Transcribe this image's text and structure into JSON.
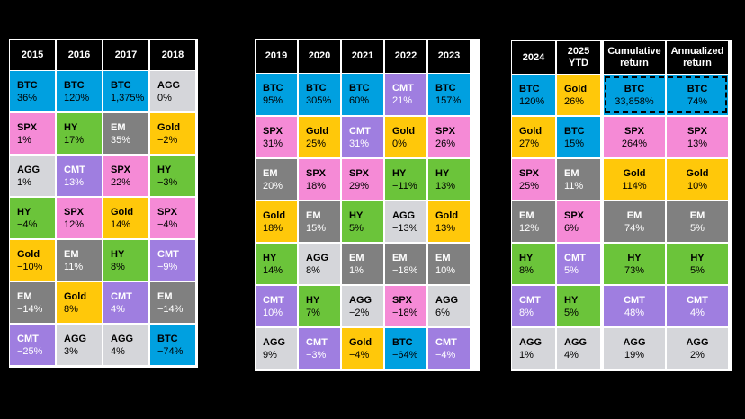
{
  "colors": {
    "BTC": "#00a0e0",
    "SPX": "#f58ad6",
    "AGG": "#d5d6da",
    "HY": "#6bc43a",
    "Gold": "#ffc80a",
    "EM": "#808080",
    "CMT": "#9f7ee0"
  },
  "text_colors": {
    "BTC": "#000000",
    "SPX": "#000000",
    "AGG": "#000000",
    "HY": "#000000",
    "Gold": "#000000",
    "EM": "#ffffff",
    "CMT": "#ffffff"
  },
  "chart_data": {
    "type": "table",
    "panels": [
      {
        "columns": [
          {
            "header": "2015",
            "cells": [
              {
                "asset": "BTC",
                "value": "36%"
              },
              {
                "asset": "SPX",
                "value": "1%"
              },
              {
                "asset": "AGG",
                "value": "1%"
              },
              {
                "asset": "HY",
                "value": "−4%"
              },
              {
                "asset": "Gold",
                "value": "−10%"
              },
              {
                "asset": "EM",
                "value": "−14%"
              },
              {
                "asset": "CMT",
                "value": "−25%"
              }
            ]
          },
          {
            "header": "2016",
            "cells": [
              {
                "asset": "BTC",
                "value": "120%"
              },
              {
                "asset": "HY",
                "value": "17%"
              },
              {
                "asset": "CMT",
                "value": "13%"
              },
              {
                "asset": "SPX",
                "value": "12%"
              },
              {
                "asset": "EM",
                "value": "11%"
              },
              {
                "asset": "Gold",
                "value": "8%"
              },
              {
                "asset": "AGG",
                "value": "3%"
              }
            ]
          },
          {
            "header": "2017",
            "cells": [
              {
                "asset": "BTC",
                "value": "1,375%"
              },
              {
                "asset": "EM",
                "value": "35%"
              },
              {
                "asset": "SPX",
                "value": "22%"
              },
              {
                "asset": "Gold",
                "value": "14%"
              },
              {
                "asset": "HY",
                "value": "8%"
              },
              {
                "asset": "CMT",
                "value": "4%"
              },
              {
                "asset": "AGG",
                "value": "4%"
              }
            ]
          },
          {
            "header": "2018",
            "cells": [
              {
                "asset": "AGG",
                "value": "0%"
              },
              {
                "asset": "Gold",
                "value": "−2%"
              },
              {
                "asset": "HY",
                "value": "−3%"
              },
              {
                "asset": "SPX",
                "value": "−4%"
              },
              {
                "asset": "CMT",
                "value": "−9%"
              },
              {
                "asset": "EM",
                "value": "−14%"
              },
              {
                "asset": "BTC",
                "value": "−74%"
              }
            ]
          }
        ]
      },
      {
        "columns": [
          {
            "header": "2019",
            "cells": [
              {
                "asset": "BTC",
                "value": "95%"
              },
              {
                "asset": "SPX",
                "value": "31%"
              },
              {
                "asset": "EM",
                "value": "20%"
              },
              {
                "asset": "Gold",
                "value": "18%"
              },
              {
                "asset": "HY",
                "value": "14%"
              },
              {
                "asset": "CMT",
                "value": "10%"
              },
              {
                "asset": "AGG",
                "value": "9%"
              }
            ]
          },
          {
            "header": "2020",
            "cells": [
              {
                "asset": "BTC",
                "value": "305%"
              },
              {
                "asset": "Gold",
                "value": "25%"
              },
              {
                "asset": "SPX",
                "value": "18%"
              },
              {
                "asset": "EM",
                "value": "15%"
              },
              {
                "asset": "AGG",
                "value": "8%"
              },
              {
                "asset": "HY",
                "value": "7%"
              },
              {
                "asset": "CMT",
                "value": "−3%"
              }
            ]
          },
          {
            "header": "2021",
            "cells": [
              {
                "asset": "BTC",
                "value": "60%"
              },
              {
                "asset": "CMT",
                "value": "31%"
              },
              {
                "asset": "SPX",
                "value": "29%"
              },
              {
                "asset": "HY",
                "value": "5%"
              },
              {
                "asset": "EM",
                "value": "1%"
              },
              {
                "asset": "AGG",
                "value": "−2%"
              },
              {
                "asset": "Gold",
                "value": "−4%"
              }
            ]
          },
          {
            "header": "2022",
            "cells": [
              {
                "asset": "CMT",
                "value": "21%"
              },
              {
                "asset": "Gold",
                "value": "0%"
              },
              {
                "asset": "HY",
                "value": "−11%"
              },
              {
                "asset": "AGG",
                "value": "−13%"
              },
              {
                "asset": "EM",
                "value": "−18%"
              },
              {
                "asset": "SPX",
                "value": "−18%"
              },
              {
                "asset": "BTC",
                "value": "−64%"
              }
            ]
          },
          {
            "header": "2023",
            "cells": [
              {
                "asset": "BTC",
                "value": "157%"
              },
              {
                "asset": "SPX",
                "value": "26%"
              },
              {
                "asset": "HY",
                "value": "13%"
              },
              {
                "asset": "Gold",
                "value": "13%"
              },
              {
                "asset": "EM",
                "value": "10%"
              },
              {
                "asset": "AGG",
                "value": "6%"
              },
              {
                "asset": "CMT",
                "value": "−4%"
              }
            ]
          }
        ]
      },
      {
        "columns": [
          {
            "header": "2024",
            "cells": [
              {
                "asset": "BTC",
                "value": "120%"
              },
              {
                "asset": "Gold",
                "value": "27%"
              },
              {
                "asset": "SPX",
                "value": "25%"
              },
              {
                "asset": "EM",
                "value": "12%"
              },
              {
                "asset": "HY",
                "value": "8%"
              },
              {
                "asset": "CMT",
                "value": "8%"
              },
              {
                "asset": "AGG",
                "value": "1%"
              }
            ]
          },
          {
            "header": "2025\nYTD",
            "cells": [
              {
                "asset": "Gold",
                "value": "26%"
              },
              {
                "asset": "BTC",
                "value": "15%"
              },
              {
                "asset": "EM",
                "value": "11%"
              },
              {
                "asset": "SPX",
                "value": "6%"
              },
              {
                "asset": "CMT",
                "value": "5%"
              },
              {
                "asset": "HY",
                "value": "5%"
              },
              {
                "asset": "AGG",
                "value": "4%"
              }
            ]
          },
          {
            "header": "Cumulative\nreturn",
            "cells": [
              {
                "asset": "BTC",
                "value": "33,858%"
              },
              {
                "asset": "SPX",
                "value": "264%"
              },
              {
                "asset": "Gold",
                "value": "114%"
              },
              {
                "asset": "EM",
                "value": "74%"
              },
              {
                "asset": "HY",
                "value": "73%"
              },
              {
                "asset": "CMT",
                "value": "48%"
              },
              {
                "asset": "AGG",
                "value": "19%"
              }
            ]
          },
          {
            "header": "Annualized\nreturn",
            "cells": [
              {
                "asset": "BTC",
                "value": "74%"
              },
              {
                "asset": "SPX",
                "value": "13%"
              },
              {
                "asset": "Gold",
                "value": "10%"
              },
              {
                "asset": "EM",
                "value": "5%"
              },
              {
                "asset": "HY",
                "value": "5%"
              },
              {
                "asset": "CMT",
                "value": "4%"
              },
              {
                "asset": "AGG",
                "value": "2%"
              }
            ]
          }
        ]
      }
    ]
  }
}
